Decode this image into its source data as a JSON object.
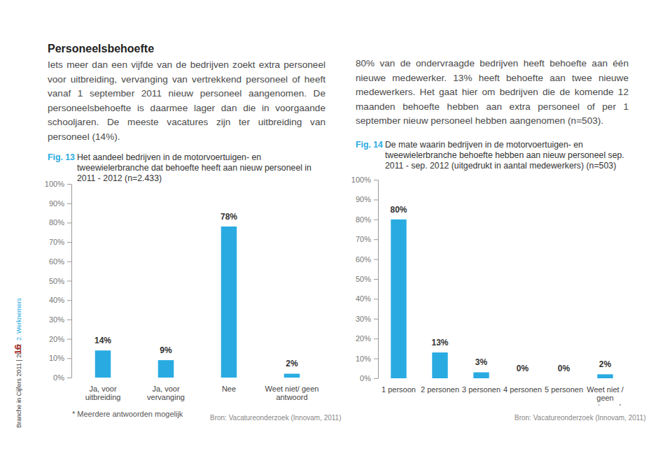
{
  "chart_data": [
    {
      "type": "bar",
      "title": "Het aandeel bedrijven in de motorvoertuigen- en tweewielerbranche dat behoefte heeft aan nieuw personeel in 2011 - 2012 (n=2.433)",
      "categories": [
        "Ja, voor uitbreiding",
        "Ja, voor vervanging",
        "Nee",
        "Weet niet/ geen antwoord"
      ],
      "values": [
        14,
        9,
        78,
        2
      ],
      "value_labels": [
        "14%",
        "9%",
        "78%",
        "2%"
      ],
      "color": "#29abe2",
      "ylim": [
        0,
        100
      ],
      "yticks": [
        {
          "value": 0,
          "label": "0%"
        },
        {
          "value": 10,
          "label": "10%"
        },
        {
          "value": 20,
          "label": "20%"
        },
        {
          "value": 30,
          "label": "30%"
        },
        {
          "value": 40,
          "label": "40%"
        },
        {
          "value": 50,
          "label": "50%"
        },
        {
          "value": 60,
          "label": "60%"
        },
        {
          "value": 70,
          "label": "70%"
        },
        {
          "value": 80,
          "label": "80%"
        },
        {
          "value": 90,
          "label": "90%"
        },
        {
          "value": 100,
          "label": "100%"
        }
      ],
      "grid": false,
      "data_labels": true,
      "annotations": [
        "* Meerdere antwoorden mogelijk",
        "Bron: Vacatureonderzoek (Innovam, 2011)"
      ]
    },
    {
      "type": "bar",
      "title": "De mate waarin bedrijven in de motorvoertuigen- en tweewielerbranche behoefte hebben aan nieuw personeel sep. 2011 - sep. 2012 (uitgedrukt in aantal medewerkers) (n=503)",
      "categories": [
        "1 persoon",
        "2 personen",
        "3 personen",
        "4 personen",
        "5 personen",
        "Weet niet / geen antwoord"
      ],
      "values": [
        80,
        13,
        3,
        0,
        0,
        2
      ],
      "value_labels": [
        "80%",
        "13%",
        "3%",
        "0%",
        "0%",
        "2%"
      ],
      "color": "#29abe2",
      "ylim": [
        0,
        100
      ],
      "yticks": [
        {
          "value": 0,
          "label": "0%"
        },
        {
          "value": 10,
          "label": "10%"
        },
        {
          "value": 20,
          "label": "20%"
        },
        {
          "value": 30,
          "label": "30%"
        },
        {
          "value": 40,
          "label": "40%"
        },
        {
          "value": 50,
          "label": "50%"
        },
        {
          "value": 60,
          "label": "60%"
        },
        {
          "value": 70,
          "label": "70%"
        },
        {
          "value": 80,
          "label": "80%"
        },
        {
          "value": 90,
          "label": "90%"
        },
        {
          "value": 100,
          "label": "100%"
        }
      ],
      "grid": false,
      "data_labels": true,
      "annotations": [
        "Bron: Vacatureonderzoek (Innovam, 2011)"
      ]
    }
  ],
  "document": {
    "heading": "Personeelsbehoefte",
    "paragraphs": [
      "Iets meer dan een vijfde van de bedrijven zoekt extra personeel voor uitbreiding, vervanging van vertrekkend personeel of heeft vanaf 1 september 2011 nieuw personeel aangenomen. De personeelsbehoefte is daarmee lager dan die in voorgaande schooljaren. De meeste vacatures zijn ter uitbreiding van personeel (14%).",
      "80% van de ondervraagde bedrijven heeft behoefte aan één nieuwe medewerker. 13% heeft behoefte aan twee nieuwe medewerkers. Het gaat hier om bedrijven die de komende 12 maanden behoefte hebben aan extra personeel of per 1 september nieuw personeel hebben aangenomen (n=503)."
    ],
    "figure_labels": [
      "Fig. 13",
      "Fig. 14"
    ],
    "sidebar": [
      "Branche in Cijfers 2011 | 2012",
      "16",
      "2. Werknemers"
    ]
  }
}
